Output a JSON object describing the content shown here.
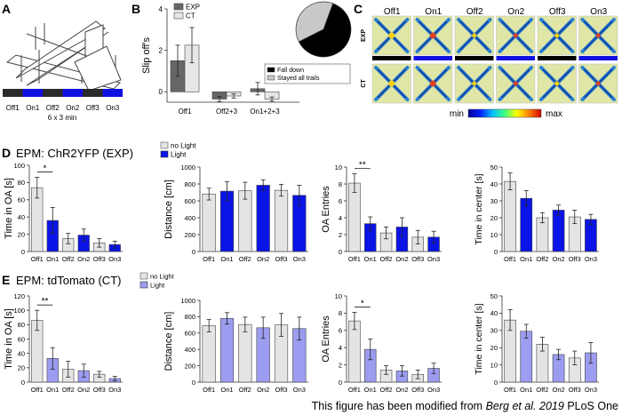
{
  "panel_letters": {
    "A": "A",
    "B": "B",
    "C": "C",
    "D": "D",
    "E": "E"
  },
  "panel_a": {
    "bar_labels": [
      "Off1",
      "On1",
      "Off2",
      "On2",
      "Off3",
      "On3"
    ],
    "duration": "6 x 3 min",
    "colors": {
      "off": "#2b2b2b",
      "on": "#1010e0"
    }
  },
  "panel_c": {
    "col_labels": [
      "Off1",
      "On1",
      "Off2",
      "On2",
      "Off3",
      "On3"
    ],
    "row_labels": [
      "EXP",
      "CT"
    ],
    "colorbar_min": "min",
    "colorbar_max": "max"
  },
  "section_d_title": "EPM: ChR2YFP (EXP)",
  "section_e_title": "EPM: tdTomato (CT)",
  "legend_d": {
    "off": "no Light",
    "on": "Light"
  },
  "legend_e": {
    "off": "no Light",
    "on": "Light"
  },
  "credit": {
    "prefix": "This figure has been modified from ",
    "author": "Berg et al. 2019",
    "suffix": " PLoS One"
  },
  "colors": {
    "exp_dark": "#666666",
    "ct_light": "#e6e6e6",
    "off_bar": "#e4e4e4",
    "on_blue": "#0a14e6",
    "on_purple": "#9c9cf0",
    "pie_black": "#000000",
    "pie_gray": "#c8c8c8"
  },
  "chart_data": [
    {
      "id": "B",
      "type": "bar",
      "ylabel": "Slip off's",
      "ylim": [
        -0.5,
        4
      ],
      "yticks": [
        0,
        2,
        4
      ],
      "categories": [
        "Off1",
        "Off2+3",
        "On1+2+3"
      ],
      "series": [
        {
          "name": "EXP",
          "values": [
            1.5,
            -0.35,
            0.15
          ],
          "err": [
            0.75,
            0.12,
            0.3
          ]
        },
        {
          "name": "CT",
          "values": [
            2.25,
            -0.2,
            -0.35
          ],
          "err": [
            0.85,
            0.1,
            0.1
          ]
        }
      ]
    },
    {
      "id": "B-pie",
      "type": "pie",
      "slices": [
        {
          "name": "Fall down",
          "value": 0.62
        },
        {
          "name": "Stayed all trails",
          "value": 0.38
        }
      ]
    },
    {
      "id": "D1",
      "type": "bar",
      "ylabel": "Time in OA [s]",
      "ylim": [
        0,
        100
      ],
      "yticks": [
        0,
        20,
        40,
        60,
        80,
        100
      ],
      "categories": [
        "Off1",
        "On1",
        "Off2",
        "On2",
        "Off3",
        "On3"
      ],
      "values": [
        74,
        36,
        15,
        19,
        10,
        8
      ],
      "err": [
        12,
        15,
        6,
        7,
        5,
        4
      ],
      "significance": [
        {
          "from": 0,
          "to": 1,
          "label": "*"
        }
      ]
    },
    {
      "id": "D2",
      "type": "bar",
      "ylabel": "Distance [cm]",
      "ylim": [
        0,
        1000
      ],
      "yticks": [
        0,
        200,
        400,
        600,
        800,
        1000
      ],
      "categories": [
        "Off1",
        "On1",
        "Off2",
        "On2",
        "Off3",
        "On3"
      ],
      "values": [
        680,
        715,
        720,
        785,
        725,
        665
      ],
      "err": [
        70,
        110,
        100,
        65,
        70,
        120
      ]
    },
    {
      "id": "D3",
      "type": "bar",
      "ylabel": "OA Entries",
      "ylim": [
        0,
        10
      ],
      "yticks": [
        0,
        2,
        4,
        6,
        8,
        10
      ],
      "categories": [
        "Off1",
        "On1",
        "Off2",
        "On2",
        "Off3",
        "On3"
      ],
      "values": [
        8.1,
        3.3,
        2.2,
        2.9,
        1.7,
        1.7
      ],
      "err": [
        1.1,
        0.8,
        0.7,
        1.1,
        0.8,
        0.7
      ],
      "significance": [
        {
          "from": 0,
          "to": 1,
          "label": "**"
        }
      ]
    },
    {
      "id": "D4",
      "type": "bar",
      "ylabel": "Time in center [s]",
      "ylim": [
        0,
        50
      ],
      "yticks": [
        0,
        10,
        20,
        30,
        40,
        50
      ],
      "categories": [
        "Off1",
        "On1",
        "Off2",
        "On2",
        "Off3",
        "On3"
      ],
      "values": [
        41.5,
        31.5,
        20,
        24.5,
        20.5,
        19
      ],
      "err": [
        5,
        4.5,
        3,
        3,
        4,
        3
      ]
    },
    {
      "id": "E1",
      "type": "bar",
      "ylabel": "Time in OA [s]",
      "ylim": [
        0,
        120
      ],
      "yticks": [
        0,
        20,
        40,
        60,
        80,
        100,
        120
      ],
      "categories": [
        "Off1",
        "On1",
        "Off2",
        "On2",
        "Off3",
        "On3"
      ],
      "values": [
        86,
        33,
        18,
        16,
        11,
        5
      ],
      "err": [
        14,
        15,
        11,
        9,
        4,
        3
      ],
      "significance": [
        {
          "from": 0,
          "to": 1,
          "label": "**"
        }
      ]
    },
    {
      "id": "E2",
      "type": "bar",
      "ylabel": "Distance [cm]",
      "ylim": [
        0,
        1000
      ],
      "yticks": [
        0,
        200,
        400,
        600,
        800,
        1000
      ],
      "categories": [
        "Off1",
        "On1",
        "Off2",
        "On2",
        "Off3",
        "On3"
      ],
      "values": [
        690,
        780,
        705,
        665,
        700,
        655
      ],
      "err": [
        75,
        70,
        90,
        130,
        140,
        140
      ]
    },
    {
      "id": "E3",
      "type": "bar",
      "ylabel": "OA Entries",
      "ylim": [
        0,
        10
      ],
      "yticks": [
        0,
        2,
        4,
        6,
        8,
        10
      ],
      "categories": [
        "Off1",
        "On1",
        "Off2",
        "On2",
        "Off3",
        "On3"
      ],
      "values": [
        7.1,
        3.8,
        1.4,
        1.3,
        0.9,
        1.6
      ],
      "err": [
        1.0,
        1.2,
        0.5,
        0.6,
        0.5,
        0.6
      ],
      "significance": [
        {
          "from": 0,
          "to": 1,
          "label": "*"
        }
      ]
    },
    {
      "id": "E4",
      "type": "bar",
      "ylabel": "Time in center [s]",
      "ylim": [
        0,
        50
      ],
      "yticks": [
        0,
        10,
        20,
        30,
        40,
        50
      ],
      "categories": [
        "Off1",
        "On1",
        "Off2",
        "On2",
        "Off3",
        "On3"
      ],
      "values": [
        36,
        29.5,
        22,
        16,
        14,
        17
      ],
      "err": [
        6,
        4,
        4,
        3,
        4,
        6
      ]
    }
  ]
}
